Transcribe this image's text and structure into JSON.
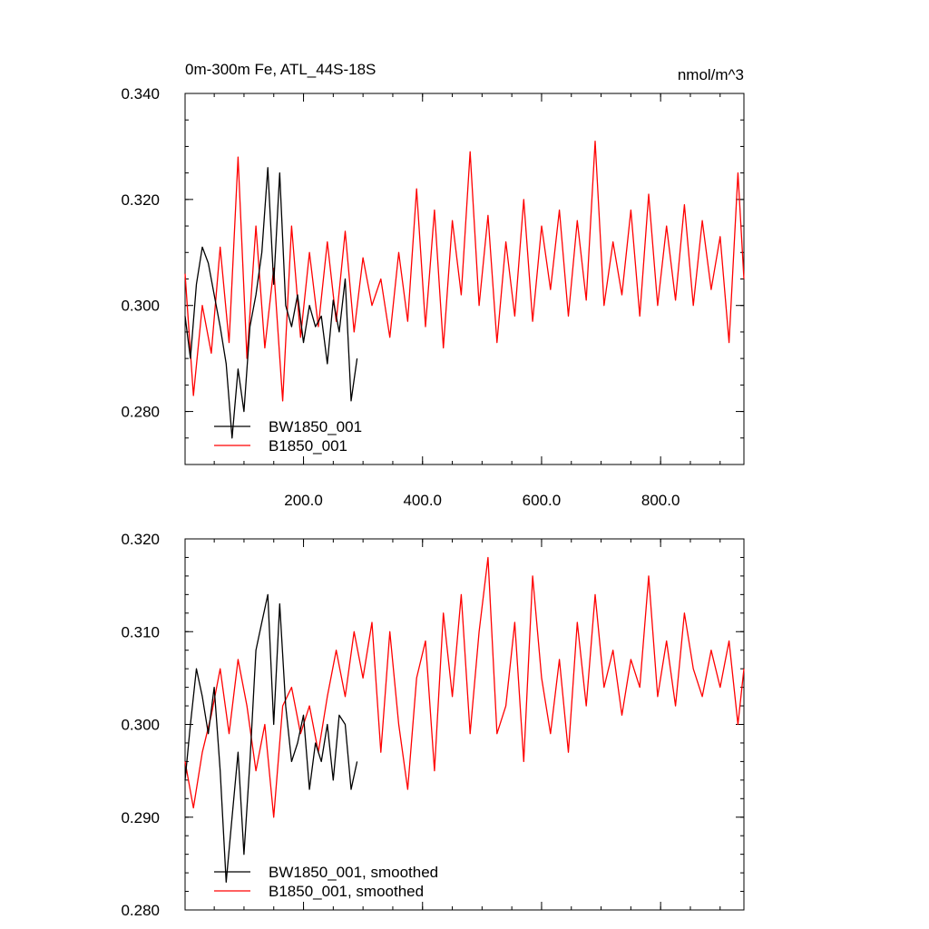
{
  "chart_data": [
    {
      "type": "line",
      "title": "0m-300m Fe, ATL_44S-18S",
      "units": "nmol/m^3",
      "xlim": [
        1,
        940
      ],
      "ylim": [
        0.27,
        0.34
      ],
      "yticks": [
        "0.340",
        "0.320",
        "0.300",
        "0.280"
      ],
      "ytick_values": [
        0.34,
        0.32,
        0.3,
        0.28
      ],
      "xticks": [
        "200.0",
        "400.0",
        "600.0",
        "800.0"
      ],
      "xtick_values": [
        200,
        400,
        600,
        800
      ],
      "legend_placement": "bottom-left",
      "series": [
        {
          "name": "BW1850_001",
          "color": "#000000",
          "x": [
            1,
            10,
            20,
            30,
            40,
            50,
            60,
            70,
            80,
            90,
            100,
            110,
            120,
            130,
            140,
            150,
            160,
            170,
            180,
            190,
            200,
            210,
            220,
            230,
            240,
            250,
            260,
            270,
            280,
            290
          ],
          "y": [
            0.298,
            0.29,
            0.304,
            0.311,
            0.308,
            0.302,
            0.296,
            0.289,
            0.275,
            0.288,
            0.28,
            0.296,
            0.302,
            0.31,
            0.326,
            0.304,
            0.325,
            0.3,
            0.296,
            0.302,
            0.293,
            0.3,
            0.296,
            0.298,
            0.289,
            0.301,
            0.295,
            0.305,
            0.282,
            0.29
          ]
        },
        {
          "name": "B1850_001",
          "color": "#ff0000",
          "x": [
            1,
            15,
            30,
            45,
            60,
            75,
            90,
            105,
            120,
            135,
            150,
            165,
            180,
            195,
            210,
            225,
            240,
            255,
            270,
            285,
            300,
            315,
            330,
            345,
            360,
            375,
            390,
            405,
            420,
            435,
            450,
            465,
            480,
            495,
            510,
            525,
            540,
            555,
            570,
            585,
            600,
            615,
            630,
            645,
            660,
            675,
            690,
            705,
            720,
            735,
            750,
            765,
            780,
            795,
            810,
            825,
            840,
            855,
            870,
            885,
            900,
            915,
            930,
            940
          ],
          "y": [
            0.306,
            0.283,
            0.3,
            0.291,
            0.311,
            0.293,
            0.328,
            0.29,
            0.315,
            0.292,
            0.307,
            0.282,
            0.315,
            0.294,
            0.31,
            0.296,
            0.312,
            0.297,
            0.314,
            0.295,
            0.309,
            0.3,
            0.305,
            0.294,
            0.31,
            0.297,
            0.322,
            0.296,
            0.318,
            0.292,
            0.316,
            0.302,
            0.329,
            0.3,
            0.317,
            0.293,
            0.312,
            0.298,
            0.32,
            0.297,
            0.315,
            0.303,
            0.318,
            0.298,
            0.316,
            0.301,
            0.331,
            0.3,
            0.312,
            0.302,
            0.318,
            0.298,
            0.321,
            0.3,
            0.315,
            0.301,
            0.319,
            0.3,
            0.316,
            0.303,
            0.313,
            0.293,
            0.325,
            0.305
          ]
        }
      ]
    },
    {
      "type": "line",
      "title": "",
      "xlim": [
        1,
        940
      ],
      "ylim": [
        0.28,
        0.32
      ],
      "yticks": [
        "0.320",
        "0.310",
        "0.300",
        "0.290",
        "0.280"
      ],
      "ytick_values": [
        0.32,
        0.31,
        0.3,
        0.29,
        0.28
      ],
      "legend_placement": "bottom-left",
      "series": [
        {
          "name": "BW1850_001, smoothed",
          "color": "#000000",
          "x": [
            1,
            10,
            20,
            30,
            40,
            50,
            60,
            70,
            80,
            90,
            100,
            110,
            120,
            130,
            140,
            150,
            160,
            170,
            180,
            190,
            200,
            210,
            220,
            230,
            240,
            250,
            260,
            270,
            280,
            290
          ],
          "y": [
            0.294,
            0.3,
            0.306,
            0.303,
            0.299,
            0.304,
            0.295,
            0.283,
            0.29,
            0.297,
            0.286,
            0.296,
            0.308,
            0.311,
            0.314,
            0.3,
            0.313,
            0.302,
            0.296,
            0.298,
            0.301,
            0.293,
            0.298,
            0.296,
            0.3,
            0.294,
            0.301,
            0.3,
            0.293,
            0.296
          ]
        },
        {
          "name": "B1850_001, smoothed",
          "color": "#ff0000",
          "x": [
            1,
            15,
            30,
            45,
            60,
            75,
            90,
            105,
            120,
            135,
            150,
            165,
            180,
            195,
            210,
            225,
            240,
            255,
            270,
            285,
            300,
            315,
            330,
            345,
            360,
            375,
            390,
            405,
            420,
            435,
            450,
            465,
            480,
            495,
            510,
            525,
            540,
            555,
            570,
            585,
            600,
            615,
            630,
            645,
            660,
            675,
            690,
            705,
            720,
            735,
            750,
            765,
            780,
            795,
            810,
            825,
            840,
            855,
            870,
            885,
            900,
            915,
            930,
            940
          ],
          "y": [
            0.296,
            0.291,
            0.297,
            0.301,
            0.306,
            0.299,
            0.307,
            0.302,
            0.295,
            0.3,
            0.29,
            0.302,
            0.304,
            0.299,
            0.302,
            0.297,
            0.303,
            0.308,
            0.303,
            0.31,
            0.305,
            0.311,
            0.297,
            0.31,
            0.3,
            0.293,
            0.305,
            0.309,
            0.295,
            0.312,
            0.303,
            0.314,
            0.299,
            0.31,
            0.318,
            0.299,
            0.302,
            0.311,
            0.296,
            0.316,
            0.305,
            0.299,
            0.307,
            0.297,
            0.311,
            0.302,
            0.314,
            0.304,
            0.308,
            0.301,
            0.307,
            0.304,
            0.316,
            0.303,
            0.309,
            0.302,
            0.312,
            0.306,
            0.303,
            0.308,
            0.304,
            0.309,
            0.3,
            0.306
          ]
        }
      ]
    }
  ]
}
